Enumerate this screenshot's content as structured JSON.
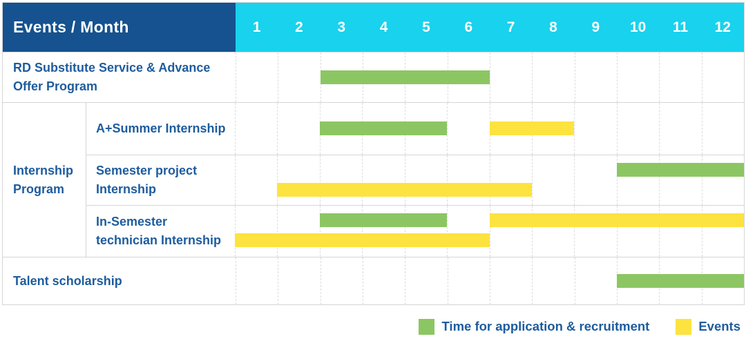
{
  "colors": {
    "darkblue": "#15528F",
    "cyan": "#19D2ED",
    "green": "#8CC663",
    "yellow": "#FDE33F",
    "textblue": "#1E5C9E",
    "border": "#D5D5D5",
    "dash": "#DCDCDC"
  },
  "header": {
    "title": "Events / Month"
  },
  "chart_data": {
    "type": "gantt",
    "title": "Events / Month",
    "months": [
      "1",
      "2",
      "3",
      "4",
      "5",
      "6",
      "7",
      "8",
      "9",
      "10",
      "11",
      "12"
    ],
    "month_range": [
      1,
      12
    ],
    "grid": "dashed-vertical-month-lines",
    "legend_position": "bottom-right",
    "rows": [
      {
        "group": "",
        "label": "RD Substitute Service & Advance Offer Program",
        "lines": [
          [
            {
              "kind": "application",
              "start": 3,
              "end": 6
            }
          ]
        ]
      },
      {
        "group": "Internship Program",
        "label": "A+Summer Internship",
        "lines": [
          [
            {
              "kind": "application",
              "start": 3,
              "end": 5
            },
            {
              "kind": "event",
              "start": 7,
              "end": 8
            }
          ]
        ]
      },
      {
        "group": "Internship Program",
        "label": "Semester project Internship",
        "lines": [
          [
            {
              "kind": "application",
              "start": 10,
              "end": 12
            }
          ],
          [
            {
              "kind": "event",
              "start": 2,
              "end": 7
            }
          ]
        ]
      },
      {
        "group": "Internship Program",
        "label": "In-Semester technician Internship",
        "lines": [
          [
            {
              "kind": "application",
              "start": 3,
              "end": 5
            },
            {
              "kind": "event",
              "start": 7,
              "end": 12
            }
          ],
          [
            {
              "kind": "event",
              "start": 1,
              "end": 6
            }
          ]
        ]
      },
      {
        "group": "",
        "label": "Talent scholarship",
        "lines": [
          [
            {
              "kind": "application",
              "start": 10,
              "end": 12
            }
          ]
        ]
      }
    ],
    "legend": [
      {
        "kind": "application",
        "color": "#8CC663",
        "label": "Time for application & recruitment"
      },
      {
        "kind": "event",
        "color": "#FDE33F",
        "label": "Events"
      }
    ]
  }
}
